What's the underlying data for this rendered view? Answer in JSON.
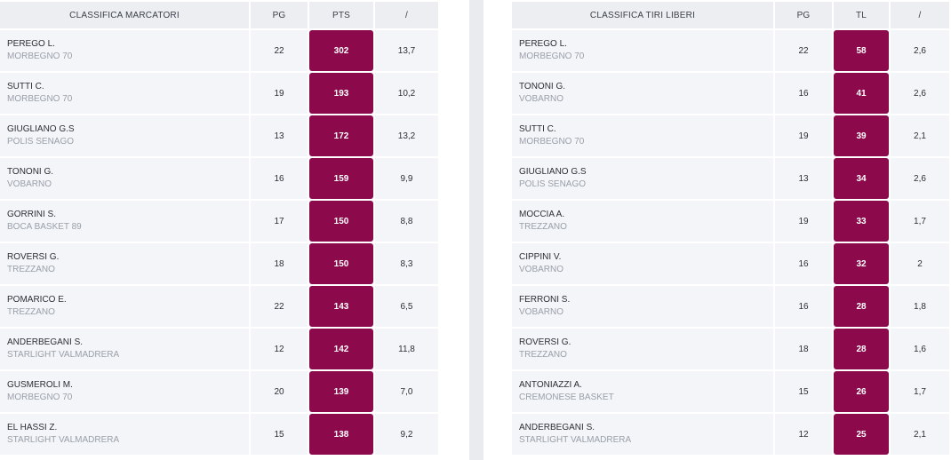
{
  "scorers": {
    "headers": [
      "CLASSIFICA MARCATORI",
      "PG",
      "PTS",
      "/"
    ],
    "rows": [
      {
        "name": "PEREGO L.",
        "team": "MORBEGNO 70",
        "pg": "22",
        "pts": "302",
        "avg": "13,7"
      },
      {
        "name": "SUTTI C.",
        "team": "MORBEGNO 70",
        "pg": "19",
        "pts": "193",
        "avg": "10,2"
      },
      {
        "name": "GIUGLIANO G.S",
        "team": "POLIS SENAGO",
        "pg": "13",
        "pts": "172",
        "avg": "13,2"
      },
      {
        "name": "TONONI G.",
        "team": "VOBARNO",
        "pg": "16",
        "pts": "159",
        "avg": "9,9"
      },
      {
        "name": "GORRINI S.",
        "team": "BOCA BASKET 89",
        "pg": "17",
        "pts": "150",
        "avg": "8,8"
      },
      {
        "name": "ROVERSI G.",
        "team": "TREZZANO",
        "pg": "18",
        "pts": "150",
        "avg": "8,3"
      },
      {
        "name": "POMARICO E.",
        "team": "TREZZANO",
        "pg": "22",
        "pts": "143",
        "avg": "6,5"
      },
      {
        "name": "ANDERBEGANI S.",
        "team": "STARLIGHT VALMADRERA",
        "pg": "12",
        "pts": "142",
        "avg": "11,8"
      },
      {
        "name": "GUSMEROLI M.",
        "team": "MORBEGNO 70",
        "pg": "20",
        "pts": "139",
        "avg": "7,0"
      },
      {
        "name": "EL HASSI Z.",
        "team": "STARLIGHT VALMADRERA",
        "pg": "15",
        "pts": "138",
        "avg": "9,2"
      }
    ]
  },
  "freethrows": {
    "headers": [
      "CLASSIFICA TIRI LIBERI",
      "PG",
      "TL",
      "/"
    ],
    "rows": [
      {
        "name": "PEREGO L.",
        "team": "MORBEGNO 70",
        "pg": "22",
        "pts": "58",
        "avg": "2,6"
      },
      {
        "name": "TONONI G.",
        "team": "VOBARNO",
        "pg": "16",
        "pts": "41",
        "avg": "2,6"
      },
      {
        "name": "SUTTI C.",
        "team": "MORBEGNO 70",
        "pg": "19",
        "pts": "39",
        "avg": "2,1"
      },
      {
        "name": "GIUGLIANO G.S",
        "team": "POLIS SENAGO",
        "pg": "13",
        "pts": "34",
        "avg": "2,6"
      },
      {
        "name": "MOCCIA A.",
        "team": "TREZZANO",
        "pg": "19",
        "pts": "33",
        "avg": "1,7"
      },
      {
        "name": "CIPPINI V.",
        "team": "VOBARNO",
        "pg": "16",
        "pts": "32",
        "avg": "2"
      },
      {
        "name": "FERRONI S.",
        "team": "VOBARNO",
        "pg": "16",
        "pts": "28",
        "avg": "1,8"
      },
      {
        "name": "ROVERSI G.",
        "team": "TREZZANO",
        "pg": "18",
        "pts": "28",
        "avg": "1,6"
      },
      {
        "name": "ANTONIAZZI A.",
        "team": "CREMONESE BASKET",
        "pg": "15",
        "pts": "26",
        "avg": "1,7"
      },
      {
        "name": "ANDERBEGANI S.",
        "team": "STARLIGHT VALMADRERA",
        "pg": "12",
        "pts": "25",
        "avg": "2,1"
      }
    ]
  },
  "colors": {
    "accent": "#8c0a4b",
    "cell_bg": "#f3f5f8",
    "header_bg": "#eceef2",
    "divider": "#e9ebef",
    "team_text": "#9aa0aa"
  }
}
